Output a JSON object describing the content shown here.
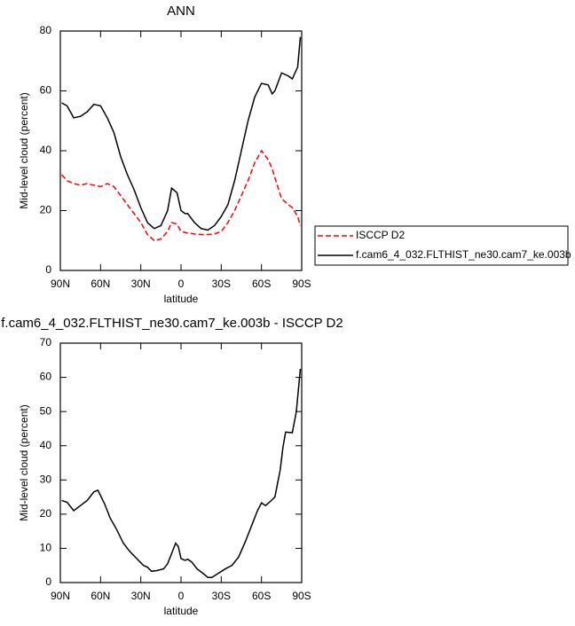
{
  "chart_data": [
    {
      "type": "line",
      "title": "ANN",
      "xlabel": "latitude",
      "ylabel": "Mid-level cloud (percent)",
      "x": [
        89,
        85,
        80,
        75,
        70,
        65,
        60,
        55,
        50,
        45,
        40,
        35,
        30,
        25,
        20,
        15,
        10,
        7,
        3,
        0,
        -3,
        -5,
        -10,
        -15,
        -20,
        -25,
        -30,
        -35,
        -40,
        -45,
        -50,
        -55,
        -60,
        -65,
        -68,
        -70,
        -75,
        -80,
        -83,
        -87,
        -89
      ],
      "series": [
        {
          "name": "ISCCP D2",
          "color": "#ff0000",
          "dashed": true,
          "values": [
            32,
            30,
            29,
            28.5,
            29,
            28.5,
            28,
            29,
            28,
            25,
            22,
            19,
            16,
            12,
            10,
            10.5,
            13,
            16,
            15.5,
            13,
            12.7,
            12.5,
            12.2,
            12,
            12,
            12.2,
            13,
            16,
            20,
            25,
            30,
            36,
            40,
            37,
            34,
            31,
            24,
            22,
            21,
            18,
            15
          ]
        },
        {
          "name": "f.cam6_4_032.FLTHIST_ne30.cam7_ke.003b",
          "color": "#000000",
          "dashed": false,
          "values": [
            56,
            55,
            51,
            51.5,
            53,
            55.5,
            55,
            51,
            46,
            38,
            32,
            27,
            21,
            16,
            14,
            15,
            20,
            27.5,
            26,
            20,
            19,
            19,
            16,
            14,
            13.5,
            15,
            18,
            22,
            30,
            40,
            50,
            58,
            62.5,
            62,
            59,
            60,
            66,
            65,
            64,
            68,
            78
          ]
        }
      ],
      "xlim": [
        90,
        -90
      ],
      "xticks": [
        {
          "value": 90,
          "label": "90N"
        },
        {
          "value": 60,
          "label": "60N"
        },
        {
          "value": 30,
          "label": "30N"
        },
        0,
        {
          "value": -30,
          "label": "30S"
        },
        {
          "value": -60,
          "label": "60S"
        },
        {
          "value": -90,
          "label": "90S"
        }
      ],
      "ylim": [
        0,
        80
      ],
      "yticks": [
        0,
        20,
        40,
        60,
        80
      ],
      "legend": "right"
    },
    {
      "type": "line",
      "title": "f.cam6_4_032.FLTHIST_ne30.cam7_ke.003b - ISCCP D2",
      "xlabel": "latitude",
      "ylabel": "Mid-level cloud (percent)",
      "x": [
        89,
        85,
        80,
        75,
        70,
        65,
        62,
        57,
        53,
        48,
        43,
        38,
        33,
        28,
        25,
        22,
        18,
        13,
        10,
        7,
        4,
        2,
        0,
        -3,
        -5,
        -8,
        -12,
        -17,
        -20,
        -23,
        -27,
        -33,
        -38,
        -43,
        -48,
        -53,
        -57,
        -60,
        -63,
        -66,
        -70,
        -74,
        -76,
        -78,
        -83,
        -86,
        -89
      ],
      "values": [
        24,
        23.5,
        21,
        22.5,
        24,
        26.5,
        27,
        23,
        19,
        15.5,
        11.5,
        9,
        7,
        5,
        4.5,
        3.3,
        3.5,
        4,
        5.5,
        8.5,
        11.5,
        10.5,
        7,
        6.5,
        6.8,
        6,
        4,
        2.5,
        1.5,
        1.5,
        2.5,
        4,
        5,
        7.5,
        12,
        17,
        21,
        23.3,
        22.5,
        23.5,
        25,
        33,
        39.5,
        44,
        43.8,
        50,
        62.5
      ],
      "color": "#000000",
      "xlim": [
        90,
        -90
      ],
      "xticks": [
        {
          "value": 90,
          "label": "90N"
        },
        {
          "value": 60,
          "label": "60N"
        },
        {
          "value": 30,
          "label": "30N"
        },
        0,
        {
          "value": -30,
          "label": "30S"
        },
        {
          "value": -60,
          "label": "60S"
        },
        {
          "value": -90,
          "label": "90S"
        }
      ],
      "ylim": [
        0,
        70
      ],
      "yticks": [
        0,
        10,
        20,
        30,
        40,
        50,
        60,
        70
      ]
    }
  ]
}
